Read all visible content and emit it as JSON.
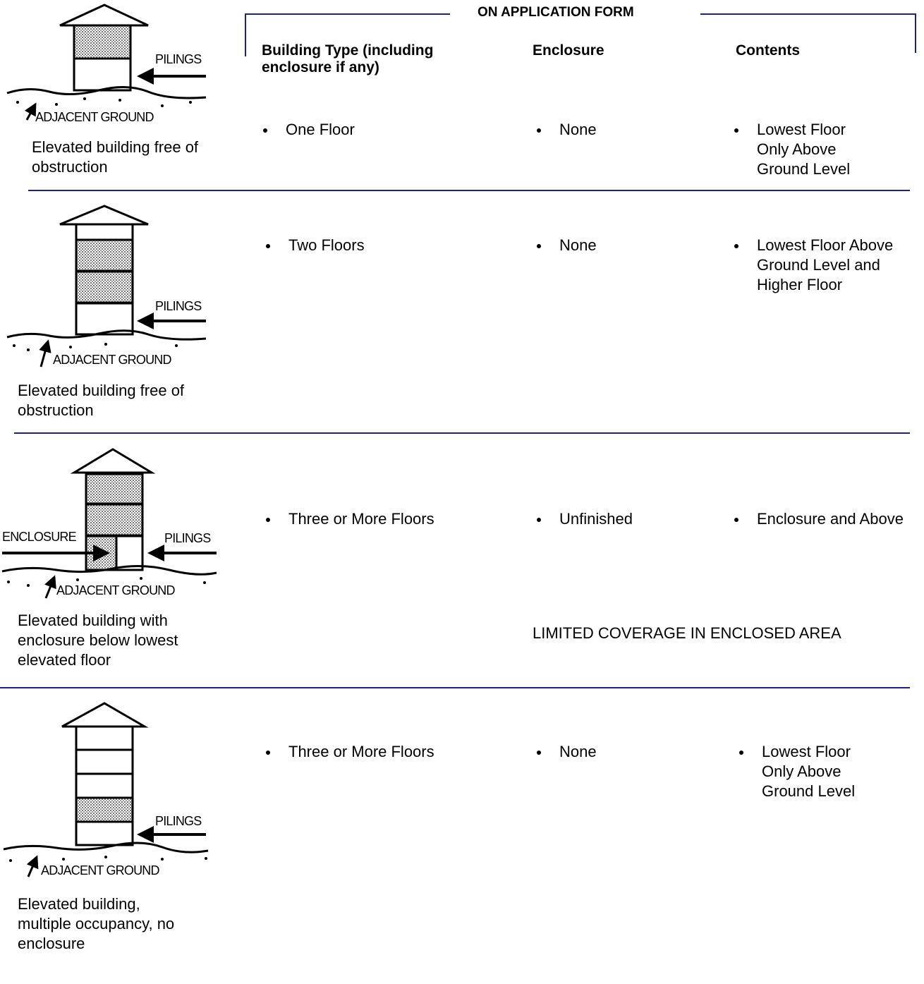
{
  "header": {
    "title": "ON APPLICATION FORM",
    "columns": {
      "building_type": "Building Type (including enclosure if any)",
      "enclosure": "Enclosure",
      "contents": "Contents"
    }
  },
  "rows": [
    {
      "figure": {
        "pilings": "PILINGS",
        "ground": "ADJACENT GROUND"
      },
      "caption": "Elevated building free of obstruction",
      "building_type": "One Floor",
      "enclosure": "None",
      "contents": "Lowest Floor Only Above Ground Level"
    },
    {
      "figure": {
        "pilings": "PILINGS",
        "ground": "ADJACENT GROUND"
      },
      "caption": "Elevated building free of obstruction",
      "building_type": "Two Floors",
      "enclosure": "None",
      "contents": "Lowest Floor Above Ground Level and Higher Floor"
    },
    {
      "figure": {
        "enclosure": "ENCLOSURE",
        "pilings": "PILINGS",
        "ground": "ADJACENT GROUND"
      },
      "caption": "Elevated building with enclosure below lowest elevated floor",
      "building_type": "Three or More Floors",
      "enclosure": "Unfinished",
      "contents": "Enclosure and Above",
      "note": "LIMITED COVERAGE IN ENCLOSED AREA"
    },
    {
      "figure": {
        "pilings": "PILINGS",
        "ground": "ADJACENT GROUND"
      },
      "caption": "Elevated building, multiple occupancy, no enclosure",
      "building_type": "Three or More Floors",
      "enclosure": "None",
      "contents": "Lowest Floor Only Above Ground Level"
    }
  ]
}
